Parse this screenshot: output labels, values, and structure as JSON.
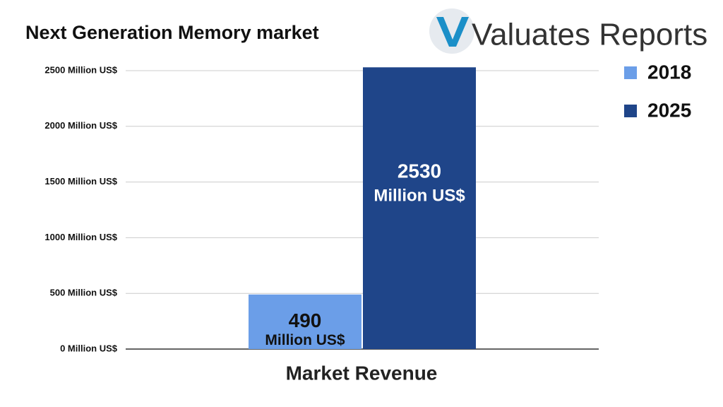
{
  "logo": "Valuates Reports",
  "chart_data": {
    "type": "bar",
    "title": "Next Generation Memory market",
    "x_label": "Market Revenue",
    "categories": [
      "Market Revenue"
    ],
    "series": [
      {
        "name": "2018",
        "color": "#6b9ee8",
        "values": [
          490
        ],
        "value_labels": [
          "490 Million US$"
        ]
      },
      {
        "name": "2025",
        "color": "#1f4589",
        "values": [
          2530
        ],
        "value_labels": [
          "2530 Million US$"
        ]
      }
    ],
    "ylim": [
      0,
      2500
    ],
    "yticks": [
      {
        "value": 0,
        "label": "0 Million US$"
      },
      {
        "value": 500,
        "label": "500 Million US$"
      },
      {
        "value": 1000,
        "label": "1000 Million US$"
      },
      {
        "value": 1500,
        "label": "1500 Million US$"
      },
      {
        "value": 2000,
        "label": "2000 Million US$"
      },
      {
        "value": 2500,
        "label": "2500 Million US$"
      }
    ],
    "grid": true,
    "legend": "top-right"
  }
}
